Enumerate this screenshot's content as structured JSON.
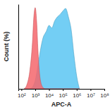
{
  "chart_data": {
    "type": "area",
    "x_label": "APC-A",
    "y_label": "Count (%)",
    "log": "x",
    "tick_labels": "x",
    "xlim": [
      60,
      100000000
    ],
    "ylim": [
      0,
      100
    ],
    "xticks": [
      {
        "value": 100,
        "label": "10²"
      },
      {
        "value": 1000,
        "label": "10³"
      },
      {
        "value": 10000,
        "label": "10⁴"
      },
      {
        "value": 100000,
        "label": "10⁵"
      },
      {
        "value": 1000000,
        "label": "10⁶"
      },
      {
        "value": 10000000,
        "label": "10⁷"
      },
      {
        "value": 100000000,
        "label": "10⁸"
      }
    ],
    "x": [
      158,
      251,
      398,
      631,
      794,
      1000,
      1259,
      1585,
      1995,
      2512,
      3162,
      3981,
      5012,
      6310,
      10000,
      15849,
      25119,
      39811,
      63096,
      100000,
      158489,
      251189,
      398107,
      630957,
      1000000,
      1584893
    ],
    "series": [
      {
        "color": "#5bc6f2",
        "values": [
          0,
          0,
          0,
          2,
          5,
          10,
          18,
          28,
          38,
          48,
          56,
          62,
          65,
          68,
          75,
          72,
          80,
          85,
          88,
          92,
          95,
          85,
          70,
          40,
          15,
          0
        ]
      },
      {
        "color": "#f4666c",
        "values": [
          0,
          5,
          20,
          55,
          85,
          96,
          80,
          45,
          20,
          8,
          3,
          1,
          0,
          0,
          0,
          0,
          0,
          0,
          0,
          0,
          0,
          0,
          0,
          0,
          0,
          0
        ]
      }
    ]
  }
}
